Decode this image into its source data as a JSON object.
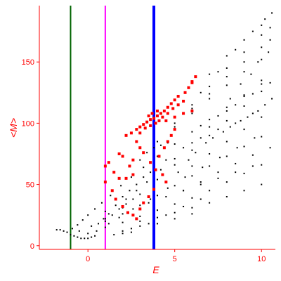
{
  "chart_data": {
    "type": "scatter",
    "xlabel": "E",
    "ylabel": "<M>",
    "xlim": [
      -2.8,
      10.8
    ],
    "ylim": [
      -3,
      196
    ],
    "x_ticks": [
      0,
      5,
      10
    ],
    "y_ticks": [
      0,
      50,
      100,
      150
    ],
    "grid": false,
    "axis_color": "#ff0000",
    "vertical_lines": [
      {
        "x": -1.0,
        "color": "#006400"
      },
      {
        "x": 1.0,
        "color": "#ff00ff"
      },
      {
        "x": 3.8,
        "color": "#0000ff"
      }
    ],
    "series": [
      {
        "color": "#000000",
        "marker": "dot",
        "points": [
          [
            -1.8,
            13
          ],
          [
            -1.6,
            13
          ],
          [
            -1.4,
            12
          ],
          [
            -1.2,
            11
          ],
          [
            -1.0,
            9
          ],
          [
            -0.8,
            8
          ],
          [
            -0.6,
            7
          ],
          [
            -0.4,
            6
          ],
          [
            -0.2,
            6
          ],
          [
            0.0,
            6
          ],
          [
            0.2,
            7
          ],
          [
            0.4,
            8
          ],
          [
            -0.9,
            14
          ],
          [
            -0.6,
            17
          ],
          [
            -0.3,
            21
          ],
          [
            0.0,
            25
          ],
          [
            0.4,
            30
          ],
          [
            0.8,
            35
          ],
          [
            1.3,
            41
          ],
          [
            1.9,
            49
          ],
          [
            2.5,
            56
          ],
          [
            3.2,
            64
          ],
          [
            4.0,
            73
          ],
          [
            5.0,
            83
          ],
          [
            6.0,
            93
          ],
          [
            7.0,
            103
          ],
          [
            8.0,
            113
          ],
          [
            9.0,
            123
          ],
          [
            10.0,
            132
          ],
          [
            -0.5,
            12
          ],
          [
            0.2,
            16
          ],
          [
            1.0,
            22
          ],
          [
            2.0,
            31
          ],
          [
            3.0,
            42
          ],
          [
            4.0,
            54
          ],
          [
            5.0,
            66
          ],
          [
            6.0,
            78
          ],
          [
            7.0,
            90
          ],
          [
            8.0,
            102
          ],
          [
            9.0,
            114
          ],
          [
            10.0,
            126
          ],
          [
            1.0,
            20
          ],
          [
            2.0,
            26
          ],
          [
            3.0,
            33
          ],
          [
            4.0,
            41
          ],
          [
            5.0,
            49
          ],
          [
            6.0,
            57
          ],
          [
            7.0,
            65
          ],
          [
            8.0,
            73
          ],
          [
            9.0,
            81
          ],
          [
            10.0,
            89
          ],
          [
            0.0,
            10
          ],
          [
            1.0,
            15
          ],
          [
            2.0,
            19
          ],
          [
            3.0,
            24
          ],
          [
            4.0,
            29
          ],
          [
            5.0,
            34
          ],
          [
            6.0,
            39
          ],
          [
            7.0,
            45
          ],
          [
            8.0,
            52
          ],
          [
            9.0,
            59
          ],
          [
            10.0,
            66
          ],
          [
            4.0,
            85
          ],
          [
            5.0,
            97
          ],
          [
            6.0,
            108
          ],
          [
            7.0,
            120
          ],
          [
            8.0,
            131
          ],
          [
            9.0,
            142
          ],
          [
            10.0,
            152
          ],
          [
            1.0,
            28
          ],
          [
            1.6,
            33
          ],
          [
            2.2,
            38
          ],
          [
            2.8,
            45
          ],
          [
            3.4,
            52
          ],
          [
            4.2,
            62
          ],
          [
            5.0,
            71
          ],
          [
            6.0,
            84
          ],
          [
            7.0,
            97
          ],
          [
            8.0,
            110
          ],
          [
            9.0,
            122
          ],
          [
            10.0,
            135
          ],
          [
            5.0,
            100
          ],
          [
            6.0,
            112
          ],
          [
            7.0,
            124
          ],
          [
            8.0,
            138
          ],
          [
            9.0,
            150
          ],
          [
            10.0,
            162
          ],
          [
            10.5,
            168
          ],
          [
            6.0,
            115
          ],
          [
            7.0,
            130
          ],
          [
            8.0,
            145
          ],
          [
            9.0,
            158
          ],
          [
            10.0,
            172
          ],
          [
            10.5,
            178
          ],
          [
            6.5,
            125
          ],
          [
            7.5,
            142
          ],
          [
            8.5,
            160
          ],
          [
            9.5,
            175
          ],
          [
            10.2,
            185
          ],
          [
            10.6,
            190
          ],
          [
            3.0,
            20
          ],
          [
            4.0,
            23
          ],
          [
            5.0,
            27
          ],
          [
            6.0,
            31
          ],
          [
            7.0,
            35
          ],
          [
            8.0,
            40
          ],
          [
            9.0,
            45
          ],
          [
            10.0,
            50
          ],
          [
            2.0,
            12
          ],
          [
            2.5,
            14
          ],
          [
            3.0,
            16
          ],
          [
            4.0,
            18
          ],
          [
            5.0,
            22
          ],
          [
            6.0,
            26
          ],
          [
            5.5,
            45
          ],
          [
            6.5,
            52
          ],
          [
            7.5,
            60
          ],
          [
            8.5,
            67
          ],
          [
            9.5,
            74
          ],
          [
            10.5,
            80
          ],
          [
            6.0,
            65
          ],
          [
            7.0,
            75
          ],
          [
            8.0,
            85
          ],
          [
            9.0,
            95
          ],
          [
            10.0,
            105
          ],
          [
            6.5,
            98
          ],
          [
            7.5,
            106
          ],
          [
            8.5,
            115
          ],
          [
            9.5,
            124
          ],
          [
            10.5,
            133
          ],
          [
            7.0,
            140
          ],
          [
            8.0,
            155
          ],
          [
            9.0,
            168
          ],
          [
            10.0,
            180
          ],
          [
            3.5,
            35
          ],
          [
            4.5,
            40
          ],
          [
            5.5,
            45
          ],
          [
            6.5,
            50
          ],
          [
            7.5,
            55
          ],
          [
            8.5,
            60
          ],
          [
            9.5,
            65
          ],
          [
            4.5,
            70
          ],
          [
            5.5,
            80
          ],
          [
            6.5,
            88
          ],
          [
            7.5,
            95
          ],
          [
            8.5,
            100
          ],
          [
            9.5,
            108
          ],
          [
            1.5,
            9
          ],
          [
            2.0,
            10
          ],
          [
            2.5,
            11
          ],
          [
            3.5,
            18
          ],
          [
            4.5,
            25
          ],
          [
            5.5,
            32
          ],
          [
            6.5,
            38
          ],
          [
            0.5,
            12
          ],
          [
            1.2,
            18
          ],
          [
            1.8,
            23
          ],
          [
            2.6,
            30
          ],
          [
            3.6,
            38
          ],
          [
            4.6,
            47
          ],
          [
            5.6,
            56
          ],
          [
            6.6,
            64
          ],
          [
            7.6,
            72
          ],
          [
            8.6,
            80
          ],
          [
            9.6,
            88
          ],
          [
            8.2,
            120
          ],
          [
            8.8,
            132
          ],
          [
            9.4,
            140
          ],
          [
            9.8,
            150
          ],
          [
            10.4,
            158
          ],
          [
            5.2,
            60
          ],
          [
            5.8,
            70
          ],
          [
            6.2,
            76
          ],
          [
            6.8,
            84
          ],
          [
            7.2,
            88
          ],
          [
            7.8,
            93
          ],
          [
            8.2,
            97
          ],
          [
            8.8,
            102
          ],
          [
            9.2,
            105
          ],
          [
            9.8,
            110
          ],
          [
            10.2,
            115
          ],
          [
            10.6,
            120
          ],
          [
            3.0,
            70
          ],
          [
            3.4,
            76
          ],
          [
            3.8,
            80
          ],
          [
            4.2,
            82
          ],
          [
            4.6,
            84
          ],
          [
            2.0,
            40
          ],
          [
            2.4,
            45
          ],
          [
            2.8,
            50
          ],
          [
            3.2,
            56
          ],
          [
            3.6,
            60
          ],
          [
            1.4,
            25
          ],
          [
            1.8,
            30
          ],
          [
            2.2,
            34
          ],
          [
            2.6,
            38
          ],
          [
            0.6,
            18
          ],
          [
            0.9,
            22
          ],
          [
            1.2,
            26
          ]
        ]
      },
      {
        "color": "#ff0000",
        "marker": "square",
        "points": [
          [
            2.8,
            95
          ],
          [
            3.0,
            97
          ],
          [
            3.2,
            99
          ],
          [
            3.4,
            101
          ],
          [
            3.6,
            103
          ],
          [
            3.8,
            104
          ],
          [
            4.0,
            106
          ],
          [
            4.2,
            108
          ],
          [
            4.4,
            110
          ],
          [
            4.6,
            113
          ],
          [
            4.8,
            116
          ],
          [
            5.0,
            119
          ],
          [
            5.2,
            122
          ],
          [
            3.0,
            92
          ],
          [
            3.3,
            96
          ],
          [
            3.6,
            98
          ],
          [
            3.9,
            100
          ],
          [
            4.1,
            102
          ],
          [
            4.3,
            105
          ],
          [
            4.6,
            108
          ],
          [
            4.9,
            112
          ],
          [
            5.2,
            115
          ],
          [
            5.5,
            118
          ],
          [
            5.6,
            125
          ],
          [
            5.8,
            129
          ],
          [
            6.0,
            134
          ],
          [
            6.2,
            138
          ],
          [
            6.0,
            133
          ],
          [
            4.5,
            102
          ],
          [
            5.0,
            105
          ],
          [
            5.5,
            108
          ],
          [
            6.0,
            110
          ],
          [
            2.8,
            85
          ],
          [
            3.0,
            80
          ],
          [
            3.2,
            76
          ],
          [
            2.6,
            70
          ],
          [
            2.4,
            65
          ],
          [
            2.0,
            73
          ],
          [
            1.8,
            75
          ],
          [
            1.5,
            60
          ],
          [
            1.8,
            55
          ],
          [
            2.2,
            55
          ],
          [
            2.6,
            58
          ],
          [
            1.4,
            45
          ],
          [
            1.0,
            52
          ],
          [
            1.6,
            38
          ],
          [
            2.0,
            32
          ],
          [
            2.3,
            27
          ],
          [
            2.6,
            25
          ],
          [
            2.8,
            22
          ],
          [
            3.6,
            68
          ],
          [
            3.9,
            62
          ],
          [
            4.1,
            73
          ],
          [
            4.3,
            58
          ],
          [
            4.5,
            52
          ],
          [
            3.8,
            46
          ],
          [
            3.5,
            40
          ],
          [
            3.2,
            35
          ],
          [
            3.0,
            30
          ],
          [
            5.0,
            95
          ],
          [
            4.8,
            90
          ],
          [
            4.6,
            85
          ],
          [
            4.4,
            80
          ],
          [
            4.0,
            110
          ],
          [
            3.7,
            108
          ],
          [
            3.5,
            106
          ],
          [
            1.2,
            68
          ],
          [
            1.0,
            65
          ],
          [
            2.2,
            90
          ],
          [
            2.5,
            92
          ]
        ]
      }
    ]
  }
}
